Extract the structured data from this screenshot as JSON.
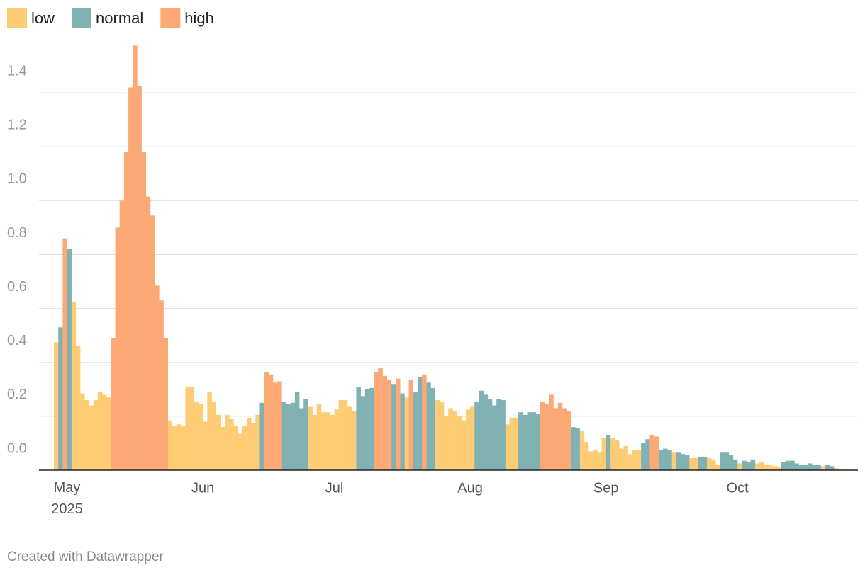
{
  "chart_data": {
    "type": "bar",
    "categories": [
      null,
      null,
      null,
      "May 2025",
      null,
      null,
      null,
      null,
      null,
      null,
      null,
      null,
      null,
      null,
      null,
      null,
      null,
      null,
      null,
      null,
      null,
      null,
      null,
      null,
      null,
      null,
      null,
      null,
      null,
      null,
      null,
      null,
      null,
      null,
      "Jun",
      null,
      null,
      null,
      null,
      null,
      null,
      null,
      null,
      null,
      null,
      null,
      null,
      null,
      null,
      null,
      null,
      null,
      null,
      null,
      null,
      null,
      null,
      null,
      null,
      null,
      null,
      null,
      null,
      null,
      "Jul",
      null,
      null,
      null,
      null,
      null,
      null,
      null,
      null,
      null,
      null,
      null,
      null,
      null,
      null,
      null,
      null,
      null,
      null,
      null,
      null,
      null,
      null,
      null,
      null,
      null,
      null,
      null,
      null,
      null,
      null,
      "Aug",
      null,
      null,
      null,
      null,
      null,
      null,
      null,
      null,
      null,
      null,
      null,
      null,
      null,
      null,
      null,
      null,
      null,
      null,
      null,
      null,
      null,
      null,
      null,
      null,
      null,
      null,
      null,
      null,
      null,
      null,
      "Sep",
      null,
      null,
      null,
      null,
      null,
      null,
      null,
      null,
      null,
      null,
      null,
      null,
      null,
      null,
      null,
      null,
      null,
      null,
      null,
      null,
      null,
      null,
      null,
      null,
      null,
      null,
      null,
      null,
      null,
      "Oct",
      null,
      null,
      null,
      null,
      null,
      null,
      null,
      null,
      null,
      null,
      null,
      null,
      null,
      null,
      null,
      null,
      null,
      null,
      null,
      null,
      null,
      null,
      null
    ],
    "series": [
      {
        "name": "low",
        "color": "#fdcc75",
        "values": [
          0.475,
          null,
          null,
          null,
          0.625,
          0.46,
          0.285,
          0.26,
          0.24,
          0.26,
          0.29,
          0.28,
          0.27,
          null,
          null,
          null,
          null,
          null,
          null,
          null,
          null,
          null,
          null,
          null,
          null,
          null,
          0.185,
          0.165,
          0.17,
          0.165,
          0.31,
          0.31,
          0.255,
          0.245,
          0.18,
          0.29,
          0.255,
          0.205,
          0.16,
          0.205,
          0.19,
          0.165,
          0.135,
          0.165,
          0.195,
          0.175,
          0.205,
          null,
          null,
          null,
          null,
          null,
          null,
          null,
          null,
          null,
          null,
          null,
          0.235,
          0.205,
          0.245,
          0.215,
          0.215,
          0.205,
          0.225,
          0.26,
          0.26,
          0.235,
          0.22,
          null,
          null,
          null,
          null,
          null,
          null,
          null,
          null,
          null,
          null,
          null,
          0.27,
          null,
          null,
          null,
          null,
          null,
          null,
          0.26,
          0.255,
          0.2,
          0.23,
          0.22,
          0.2,
          0.185,
          0.225,
          0.235,
          null,
          null,
          null,
          null,
          null,
          null,
          null,
          0.17,
          0.195,
          0.195,
          null,
          null,
          null,
          null,
          null,
          null,
          null,
          null,
          null,
          null,
          null,
          null,
          null,
          null,
          0.145,
          0.105,
          0.07,
          0.075,
          0.065,
          0.12,
          null,
          0.12,
          0.11,
          0.08,
          0.09,
          0.06,
          0.075,
          0.075,
          null,
          null,
          null,
          null,
          null,
          null,
          null,
          0.065,
          null,
          null,
          null,
          0.045,
          0.045,
          null,
          null,
          0.045,
          0.04,
          0.02,
          null,
          null,
          null,
          null,
          0.025,
          null,
          null,
          null,
          0.025,
          0.03,
          0.02,
          0.02,
          0.015,
          0.01,
          null,
          null,
          null,
          null,
          null,
          null,
          null,
          null,
          null,
          0.015,
          null,
          null,
          0.008,
          0.005
        ]
      },
      {
        "name": "normal",
        "color": "#80b1b3",
        "values": [
          null,
          0.53,
          null,
          0.82,
          null,
          null,
          null,
          null,
          null,
          null,
          null,
          null,
          null,
          null,
          null,
          null,
          null,
          null,
          null,
          null,
          null,
          null,
          null,
          null,
          null,
          null,
          null,
          null,
          null,
          null,
          null,
          null,
          null,
          null,
          null,
          null,
          null,
          null,
          null,
          null,
          null,
          null,
          null,
          null,
          null,
          null,
          null,
          0.25,
          null,
          null,
          null,
          null,
          0.255,
          0.245,
          0.25,
          0.29,
          0.23,
          0.265,
          null,
          null,
          null,
          null,
          null,
          null,
          null,
          null,
          null,
          null,
          null,
          0.31,
          0.275,
          0.3,
          0.305,
          null,
          null,
          null,
          null,
          0.32,
          null,
          0.285,
          null,
          null,
          0.29,
          0.345,
          null,
          0.325,
          0.305,
          null,
          null,
          null,
          null,
          null,
          null,
          null,
          null,
          null,
          0.255,
          0.295,
          0.28,
          0.265,
          0.24,
          0.265,
          0.26,
          null,
          null,
          null,
          0.215,
          0.205,
          0.215,
          0.215,
          0.21,
          null,
          null,
          null,
          null,
          null,
          null,
          null,
          0.16,
          0.155,
          null,
          null,
          null,
          null,
          null,
          null,
          0.13,
          null,
          null,
          null,
          null,
          null,
          null,
          null,
          0.1,
          0.115,
          null,
          null,
          0.075,
          0.08,
          0.075,
          null,
          0.065,
          0.06,
          0.055,
          null,
          null,
          0.05,
          0.05,
          null,
          null,
          null,
          0.065,
          0.065,
          0.055,
          0.04,
          null,
          0.035,
          0.03,
          0.04,
          null,
          null,
          null,
          null,
          null,
          null,
          0.03,
          0.035,
          0.035,
          0.025,
          0.02,
          0.02,
          0.025,
          0.02,
          0.02,
          null,
          0.02,
          0.015,
          null,
          null
        ]
      },
      {
        "name": "high",
        "color": "#fca976",
        "values": [
          null,
          null,
          0.86,
          null,
          null,
          null,
          null,
          null,
          null,
          null,
          null,
          null,
          null,
          0.49,
          0.9,
          1,
          1.18,
          1.42,
          1.575,
          1.425,
          1.18,
          1.015,
          0.945,
          0.685,
          0.63,
          0.49,
          null,
          null,
          null,
          null,
          null,
          null,
          null,
          null,
          null,
          null,
          null,
          null,
          null,
          null,
          null,
          null,
          null,
          null,
          null,
          null,
          null,
          null,
          0.365,
          0.355,
          0.325,
          0.33,
          null,
          null,
          null,
          null,
          null,
          null,
          null,
          null,
          null,
          null,
          null,
          null,
          null,
          null,
          null,
          null,
          null,
          null,
          null,
          null,
          null,
          0.365,
          0.38,
          0.35,
          0.335,
          null,
          0.34,
          null,
          null,
          0.335,
          null,
          null,
          0.355,
          null,
          null,
          null,
          null,
          null,
          null,
          null,
          null,
          null,
          null,
          null,
          null,
          null,
          null,
          null,
          null,
          null,
          null,
          null,
          null,
          null,
          null,
          null,
          null,
          null,
          null,
          0.255,
          0.245,
          0.28,
          0.23,
          0.25,
          0.23,
          0.22,
          null,
          null,
          null,
          null,
          null,
          null,
          null,
          null,
          null,
          null,
          null,
          null,
          null,
          null,
          null,
          null,
          null,
          null,
          0.13,
          0.125,
          null,
          null,
          null,
          null,
          null,
          null,
          null,
          null,
          null,
          null,
          null,
          null,
          null,
          null,
          null,
          null,
          null,
          null,
          null,
          null,
          null,
          null,
          null,
          null,
          null,
          null,
          null,
          null,
          null,
          null,
          null,
          null,
          null,
          null,
          null,
          null,
          null,
          null,
          null,
          null,
          null,
          null
        ]
      }
    ],
    "ylim": [
      0,
      1.6
    ],
    "yticks": [
      {
        "value": 0,
        "label": "0.0"
      },
      0.2,
      0.4,
      0.6,
      0.8,
      {
        "value": 1,
        "label": "1.0"
      },
      1.2,
      1.4
    ],
    "grid": true,
    "legend": "top-left",
    "footer": "Created with Datawrapper"
  }
}
